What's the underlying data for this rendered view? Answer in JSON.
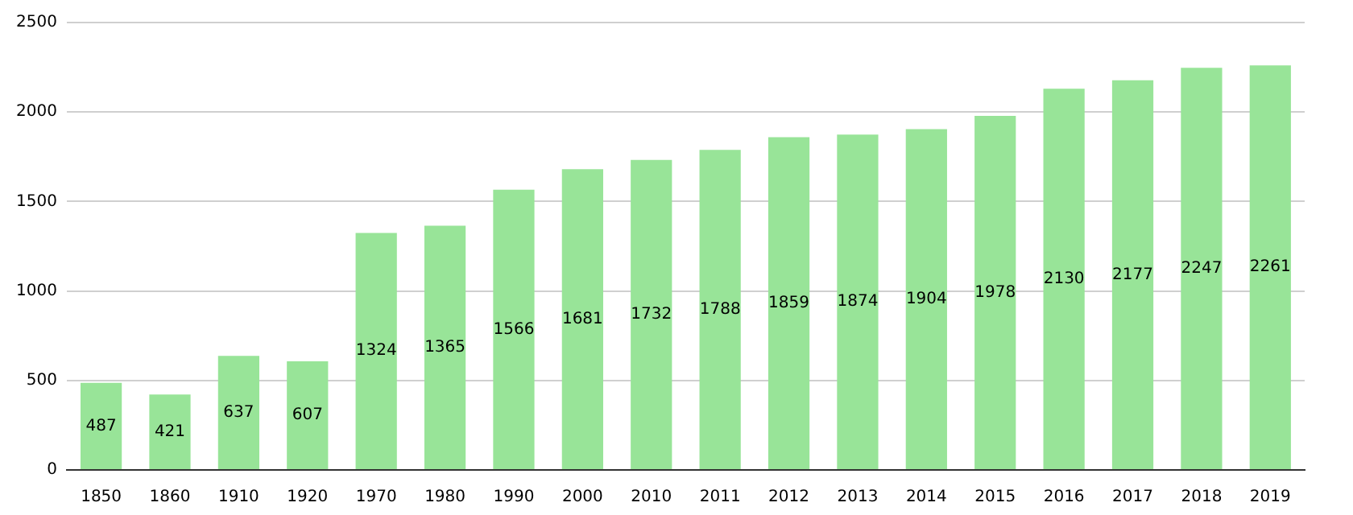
{
  "chart_data": {
    "type": "bar",
    "categories": [
      "1850",
      "1860",
      "1910",
      "1920",
      "1970",
      "1980",
      "1990",
      "2000",
      "2010",
      "2011",
      "2012",
      "2013",
      "2014",
      "2015",
      "2016",
      "2017",
      "2018",
      "2019"
    ],
    "values": [
      487,
      421,
      637,
      607,
      1324,
      1365,
      1566,
      1681,
      1732,
      1788,
      1859,
      1874,
      1904,
      1978,
      2130,
      2177,
      2247,
      2261
    ],
    "color": "#98e498",
    "ylim": [
      0,
      2500
    ],
    "yticks": [
      0,
      500,
      1000,
      1500,
      2000,
      2500
    ],
    "grid": "y",
    "data_labels": true
  }
}
